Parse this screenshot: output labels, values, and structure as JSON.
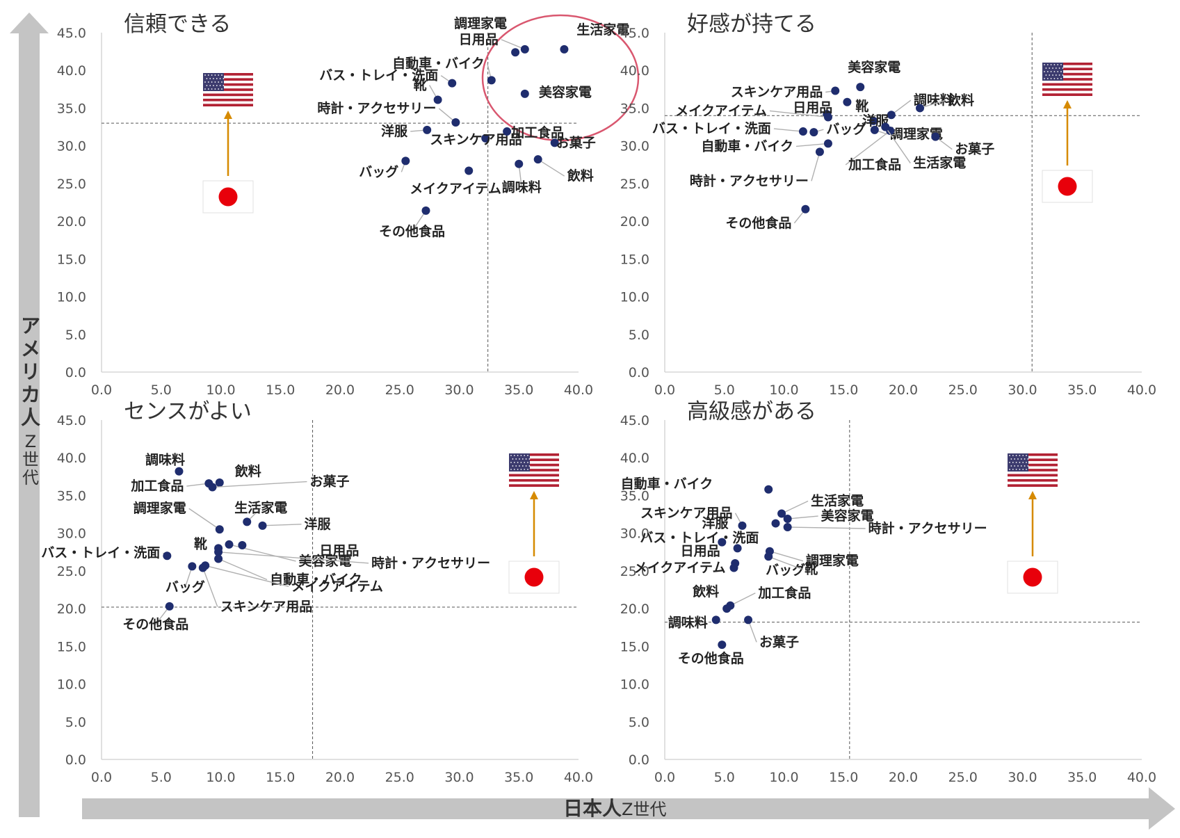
{
  "chart_data": {
    "type": "scatter",
    "xlabel_main": "日本人",
    "xlabel_sub": "Z世代",
    "ylabel_main": "アメリカ人",
    "ylabel_sub": "Z世代",
    "x_ticks": [
      "0.0",
      "5.0",
      "10.0",
      "15.0",
      "20.0",
      "25.0",
      "30.0",
      "35.0",
      "40.0"
    ],
    "y_ticks": [
      "0.0",
      "5.0",
      "10.0",
      "15.0",
      "20.0",
      "25.0",
      "30.0",
      "35.0",
      "40.0",
      "45.0"
    ],
    "xlim": [
      0,
      40
    ],
    "ylim": [
      0,
      45
    ],
    "point_color": "#1f2d6e",
    "panels": [
      {
        "title": "信頼できる",
        "x_ref": 32.4,
        "y_ref": 33.0,
        "highlight_circle": true,
        "flag_position": "left",
        "points": [
          {
            "label": "調理家電",
            "x": 34.7,
            "y": 42.4
          },
          {
            "label": "生活家電",
            "x": 38.8,
            "y": 42.8
          },
          {
            "label": "日用品",
            "x": 35.5,
            "y": 42.8
          },
          {
            "label": "自動車・バイク",
            "x": 32.7,
            "y": 38.7
          },
          {
            "label": "美容家電",
            "x": 35.5,
            "y": 36.9
          },
          {
            "label": "バス・トレイ・洗面",
            "x": 29.4,
            "y": 38.3
          },
          {
            "label": "靴",
            "x": 28.2,
            "y": 36.1
          },
          {
            "label": "時計・アクセサリー",
            "x": 29.7,
            "y": 33.1
          },
          {
            "label": "洋服",
            "x": 27.3,
            "y": 32.1
          },
          {
            "label": "スキンケア用品",
            "x": 32.2,
            "y": 31.0
          },
          {
            "label": "加工食品",
            "x": 34.0,
            "y": 31.9
          },
          {
            "label": "お菓子",
            "x": 38.0,
            "y": 30.4
          },
          {
            "label": "バッグ",
            "x": 25.5,
            "y": 28.0
          },
          {
            "label": "メイクアイテム",
            "x": 30.8,
            "y": 26.7
          },
          {
            "label": "調味料",
            "x": 35.0,
            "y": 27.6
          },
          {
            "label": "飲料",
            "x": 36.6,
            "y": 28.2
          },
          {
            "label": "その他食品",
            "x": 27.2,
            "y": 21.4
          }
        ]
      },
      {
        "title": "好感が持てる",
        "x_ref": 30.8,
        "y_ref": 34.0,
        "highlight_circle": false,
        "flag_position": "right",
        "points": [
          {
            "label": "美容家電",
            "x": 16.4,
            "y": 37.8
          },
          {
            "label": "調味料",
            "x": 19.0,
            "y": 34.1
          },
          {
            "label": "スキンケア用品",
            "x": 14.3,
            "y": 37.3
          },
          {
            "label": "靴",
            "x": 15.3,
            "y": 35.8
          },
          {
            "label": "日用品",
            "x": 13.6,
            "y": 34.2
          },
          {
            "label": "飲料",
            "x": 21.4,
            "y": 35.0
          },
          {
            "label": "メイクアイテム",
            "x": 13.7,
            "y": 33.8
          },
          {
            "label": "洋服",
            "x": 17.5,
            "y": 33.3
          },
          {
            "label": "調理家電",
            "x": 17.6,
            "y": 32.1
          },
          {
            "label": "バス・トレイ・洗面",
            "x": 11.6,
            "y": 31.9
          },
          {
            "label": "バッグ",
            "x": 12.5,
            "y": 31.8
          },
          {
            "label": "お菓子",
            "x": 22.7,
            "y": 31.2
          },
          {
            "label": "自動車・バイク",
            "x": 13.7,
            "y": 30.3
          },
          {
            "label": "加工食品",
            "x": 18.9,
            "y": 32.0
          },
          {
            "label": "生活家電",
            "x": 18.5,
            "y": 32.5
          },
          {
            "label": "時計・アクセサリー",
            "x": 13.0,
            "y": 29.2
          },
          {
            "label": "その他食品",
            "x": 11.8,
            "y": 21.6
          }
        ]
      },
      {
        "title": "センスがよい",
        "x_ref": 17.7,
        "y_ref": 20.2,
        "highlight_circle": false,
        "flag_position": "right",
        "points": [
          {
            "label": "調味料",
            "x": 6.5,
            "y": 38.2
          },
          {
            "label": "飲料",
            "x": 9.9,
            "y": 36.7
          },
          {
            "label": "加工食品",
            "x": 9.0,
            "y": 36.6
          },
          {
            "label": "お菓子",
            "x": 9.3,
            "y": 36.1
          },
          {
            "label": "生活家電",
            "x": 12.2,
            "y": 31.5
          },
          {
            "label": "洋服",
            "x": 13.5,
            "y": 31.0
          },
          {
            "label": "調理家電",
            "x": 9.9,
            "y": 30.5
          },
          {
            "label": "美容家電",
            "x": 10.7,
            "y": 28.5
          },
          {
            "label": "靴",
            "x": 9.8,
            "y": 28.0
          },
          {
            "label": "日用品",
            "x": 11.8,
            "y": 28.4
          },
          {
            "label": "時計・アクセサリー",
            "x": 9.8,
            "y": 27.5
          },
          {
            "label": "自動車・バイク",
            "x": 9.8,
            "y": 26.6
          },
          {
            "label": "メイクアイテム",
            "x": 8.7,
            "y": 25.7
          },
          {
            "label": "バス・トレイ・洗面",
            "x": 5.5,
            "y": 27.0
          },
          {
            "label": "バッグ",
            "x": 7.6,
            "y": 25.6
          },
          {
            "label": "スキンケア用品",
            "x": 8.5,
            "y": 25.4
          },
          {
            "label": "その他食品",
            "x": 5.7,
            "y": 20.3
          }
        ]
      },
      {
        "title": "高級感がある",
        "x_ref": 15.5,
        "y_ref": 18.2,
        "highlight_circle": false,
        "flag_position": "right",
        "points": [
          {
            "label": "自動車・バイク",
            "x": 8.7,
            "y": 35.8
          },
          {
            "label": "生活家電",
            "x": 9.8,
            "y": 32.6
          },
          {
            "label": "美容家電",
            "x": 10.3,
            "y": 31.9
          },
          {
            "label": "スキンケア用品",
            "x": 6.5,
            "y": 31.0
          },
          {
            "label": "時計・アクセサリー",
            "x": 10.3,
            "y": 30.8
          },
          {
            "label": "洋服",
            "x": 9.3,
            "y": 31.3
          },
          {
            "label": "バス・トレイ・洗面",
            "x": 4.8,
            "y": 28.8
          },
          {
            "label": "日用品",
            "x": 6.1,
            "y": 28.0
          },
          {
            "label": "調理家電",
            "x": 8.8,
            "y": 27.6
          },
          {
            "label": "バッグ",
            "x": 5.9,
            "y": 26.0
          },
          {
            "label": "靴",
            "x": 8.7,
            "y": 26.9
          },
          {
            "label": "メイクアイテム",
            "x": 5.8,
            "y": 25.4
          },
          {
            "label": "加工食品",
            "x": 5.5,
            "y": 20.4
          },
          {
            "label": "飲料",
            "x": 5.2,
            "y": 20.0
          },
          {
            "label": "調味料",
            "x": 4.3,
            "y": 18.5
          },
          {
            "label": "お菓子",
            "x": 7.0,
            "y": 18.5
          },
          {
            "label": "その他食品",
            "x": 4.8,
            "y": 15.2
          }
        ]
      }
    ]
  }
}
